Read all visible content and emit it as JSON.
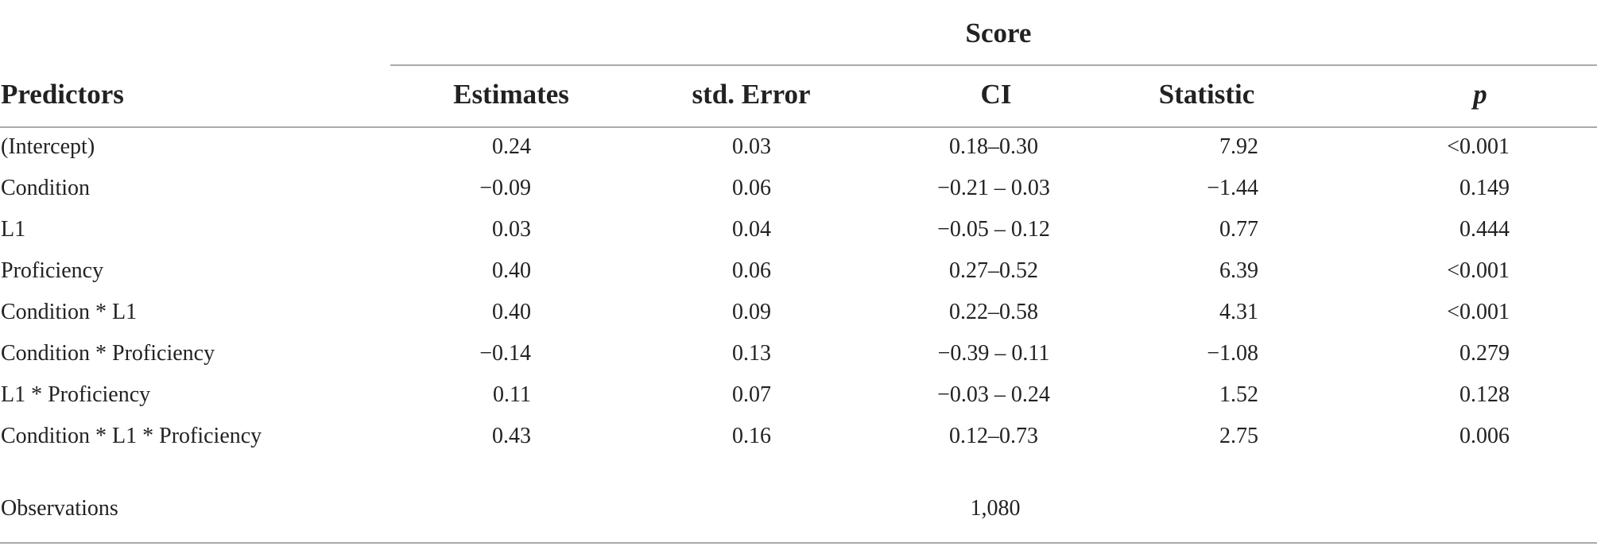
{
  "table": {
    "group_header": "Score",
    "columns": {
      "predictors": "Predictors",
      "estimates": "Estimates",
      "std_error": "std. Error",
      "ci": "CI",
      "statistic": "Statistic",
      "p": "p"
    },
    "rows": [
      {
        "predictor": "(Intercept)",
        "estimate": "0.24",
        "std_error": "0.03",
        "ci": "0.18–0.30",
        "statistic": "7.92",
        "p": "<0.001"
      },
      {
        "predictor": "Condition",
        "estimate": "−0.09",
        "std_error": "0.06",
        "ci": "−0.21 – 0.03",
        "statistic": "−1.44",
        "p": "0.149"
      },
      {
        "predictor": "L1",
        "estimate": "0.03",
        "std_error": "0.04",
        "ci": "−0.05 – 0.12",
        "statistic": "0.77",
        "p": "0.444"
      },
      {
        "predictor": "Proficiency",
        "estimate": "0.40",
        "std_error": "0.06",
        "ci": "0.27–0.52",
        "statistic": "6.39",
        "p": "<0.001"
      },
      {
        "predictor": "Condition * L1",
        "estimate": "0.40",
        "std_error": "0.09",
        "ci": "0.22–0.58",
        "statistic": "4.31",
        "p": "<0.001"
      },
      {
        "predictor": "Condition * Proficiency",
        "estimate": "−0.14",
        "std_error": "0.13",
        "ci": "−0.39 – 0.11",
        "statistic": "−1.08",
        "p": "0.279"
      },
      {
        "predictor": "L1 * Proficiency",
        "estimate": "0.11",
        "std_error": "0.07",
        "ci": "−0.03 – 0.24",
        "statistic": "1.52",
        "p": "0.128"
      },
      {
        "predictor": "Condition * L1 * Proficiency",
        "estimate": "0.43",
        "std_error": "0.16",
        "ci": "0.12–0.73",
        "statistic": "2.75",
        "p": "0.006"
      }
    ],
    "observations": {
      "label": "Observations",
      "value": "1,080"
    }
  }
}
